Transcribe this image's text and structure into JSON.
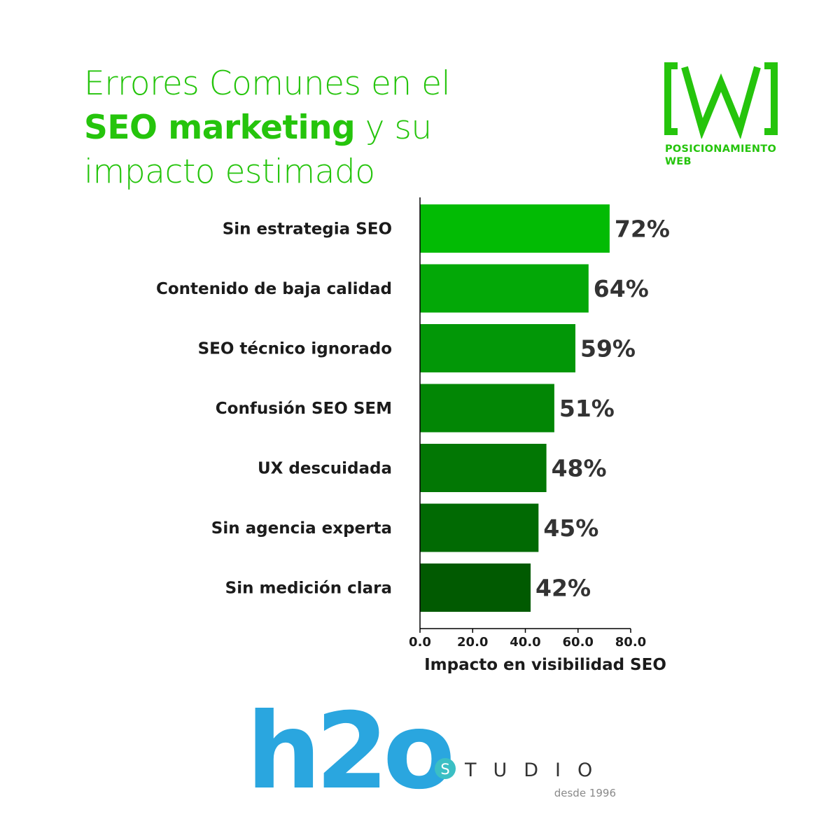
{
  "title": {
    "line1": "Errores Comunes en el",
    "line2_bold": "SEO marketing",
    "line2_rest": " y su",
    "line3": "impacto estimado"
  },
  "brand": {
    "mark": "[W]",
    "caption_line1": "POSICIONAMIENTO",
    "caption_line2": "WEB",
    "color": "#25c40c"
  },
  "chart_data": {
    "type": "bar",
    "orientation": "horizontal",
    "categories": [
      "Sin estrategia SEO",
      "Contenido de baja calidad",
      "SEO técnico ignorado",
      "Confusión SEO SEM",
      "UX descuidada",
      "Sin agencia experta",
      "Sin medición clara"
    ],
    "values": [
      72,
      64,
      59,
      51,
      48,
      45,
      42
    ],
    "value_labels": [
      "72%",
      "64%",
      "59%",
      "51%",
      "48%",
      "45%",
      "42%"
    ],
    "bar_colors": [
      "#02bb04",
      "#03a807",
      "#029707",
      "#028605",
      "#027704",
      "#016a03",
      "#015a01"
    ],
    "xlabel": "Impacto en visibilidad SEO",
    "ylabel": "",
    "xlim": [
      0,
      80
    ],
    "xticks": [
      0,
      20,
      40,
      60,
      80
    ],
    "xtick_labels": [
      "0.0",
      "20.0",
      "40.0",
      "60.0",
      "80.0"
    ],
    "grid": false
  },
  "logo": {
    "main": "h2o",
    "dot_letter": "S",
    "word": "TUDIO",
    "tagline": "desde 1996",
    "main_color": "#2aa6df",
    "dot_color": "#3bbfc4"
  }
}
